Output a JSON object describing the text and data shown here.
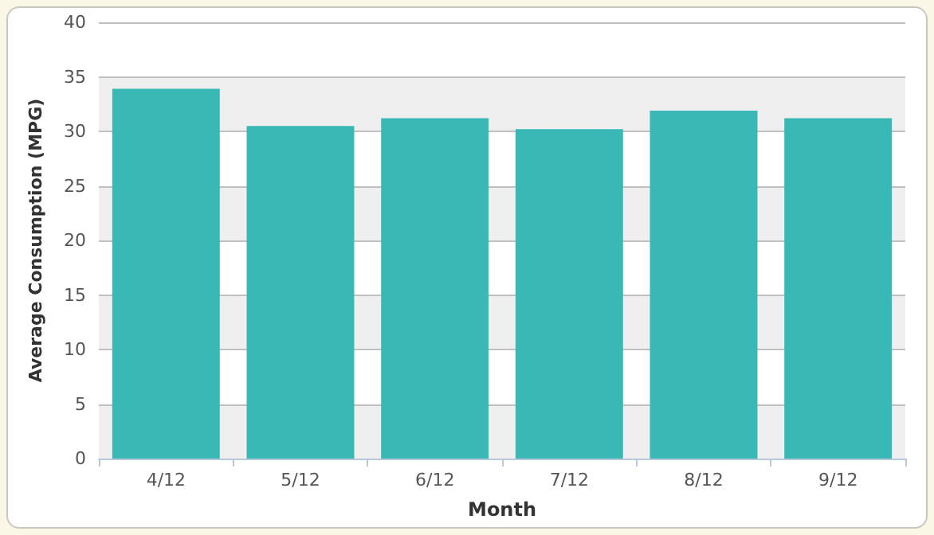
{
  "chart_data": {
    "type": "bar",
    "xlabel": "Month",
    "ylabel": "Average Consumption (MPG)",
    "categories": [
      "4/12",
      "5/12",
      "6/12",
      "7/12",
      "8/12",
      "9/12"
    ],
    "values": [
      33.9,
      30.5,
      31.2,
      30.2,
      31.9,
      31.2
    ],
    "color": "#3ab8b6",
    "ylim": [
      0,
      40
    ],
    "yticks": [
      0,
      5,
      10,
      15,
      20,
      25,
      30,
      35,
      40
    ],
    "grid": "y"
  }
}
